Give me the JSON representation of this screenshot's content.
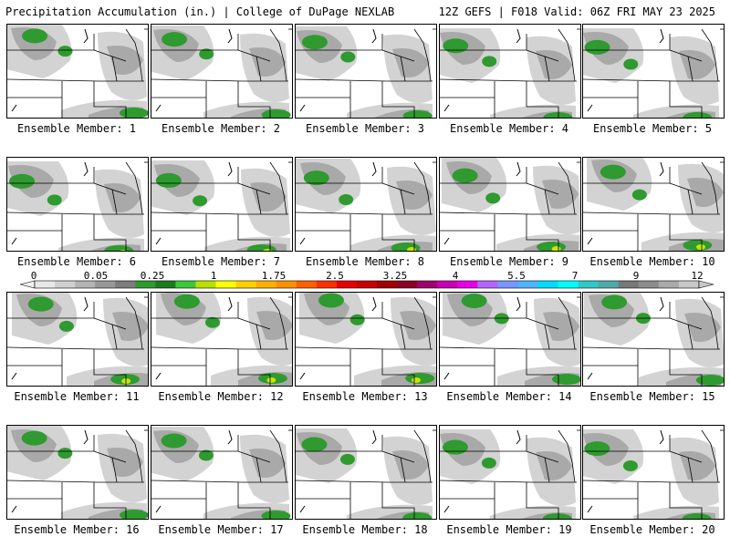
{
  "header": {
    "left_title": "Precipitation Accumulation (in.) | College of DuPage NEXLAB",
    "right_title": "12Z GEFS | F018 Valid: 06Z FRI MAY 23 2025"
  },
  "colorbar": {
    "tick_labels": [
      "0",
      "0.05",
      "0.25",
      "1",
      "1.75",
      "2.5",
      "3.25",
      "4",
      "5.5",
      "7",
      "9",
      "12"
    ],
    "colors": [
      "#e8e8e8",
      "#d0d0d0",
      "#b4b4b4",
      "#989898",
      "#7c7c7c",
      "#2f9a2f",
      "#1e7a1e",
      "#3cc83c",
      "#b8e000",
      "#ffff00",
      "#ffd000",
      "#ffb000",
      "#ff9000",
      "#ff6000",
      "#ff3000",
      "#e60000",
      "#c80000",
      "#a00000",
      "#8c0028",
      "#a0006e",
      "#c800b4",
      "#e600e6",
      "#b464ff",
      "#7896ff",
      "#50b4ff",
      "#00dcff",
      "#00ffff",
      "#32c8c8",
      "#50aaaa",
      "#787878",
      "#8c8c8c",
      "#aaaaaa",
      "#c8c8c8"
    ]
  },
  "map_colors": {
    "light_gray": "#d3d3d3",
    "mid_gray": "#a9a9a9",
    "dark_gray": "#8a8a8a",
    "green": "#2f9a2f",
    "yellow_green": "#c8e600"
  },
  "panels": [
    {
      "label": "Ensemble Member: 1"
    },
    {
      "label": "Ensemble Member: 2"
    },
    {
      "label": "Ensemble Member: 3"
    },
    {
      "label": "Ensemble Member: 4"
    },
    {
      "label": "Ensemble Member: 5"
    },
    {
      "label": "Ensemble Member: 6"
    },
    {
      "label": "Ensemble Member: 7"
    },
    {
      "label": "Ensemble Member: 8"
    },
    {
      "label": "Ensemble Member: 9"
    },
    {
      "label": "Ensemble Member: 10"
    },
    {
      "label": "Ensemble Member: 11"
    },
    {
      "label": "Ensemble Member: 12"
    },
    {
      "label": "Ensemble Member: 13"
    },
    {
      "label": "Ensemble Member: 14"
    },
    {
      "label": "Ensemble Member: 15"
    },
    {
      "label": "Ensemble Member: 16"
    },
    {
      "label": "Ensemble Member: 17"
    },
    {
      "label": "Ensemble Member: 18"
    },
    {
      "label": "Ensemble Member: 19"
    },
    {
      "label": "Ensemble Member: 20"
    }
  ]
}
